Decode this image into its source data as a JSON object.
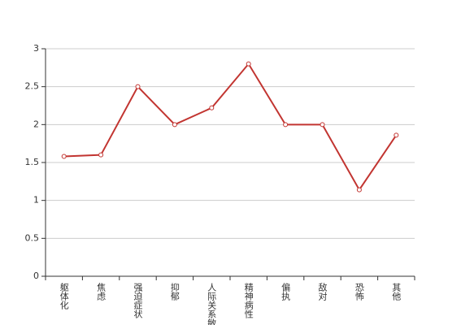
{
  "chart_data": {
    "type": "line",
    "categories": [
      "躯体化",
      "焦虑",
      "强迫症状",
      "抑郁",
      "人际关系敏感",
      "精神病性",
      "偏执",
      "敌对",
      "恐怖",
      "其他"
    ],
    "series": [
      {
        "color": "#c23531",
        "values": [
          1.58,
          1.6,
          2.5,
          2.0,
          2.22,
          2.8,
          2.0,
          2.0,
          1.14,
          1.86
        ]
      }
    ],
    "ylim": [
      0,
      3
    ],
    "yticks": [
      0,
      0.5,
      1,
      1.5,
      2,
      2.5,
      3
    ],
    "grid": true
  }
}
